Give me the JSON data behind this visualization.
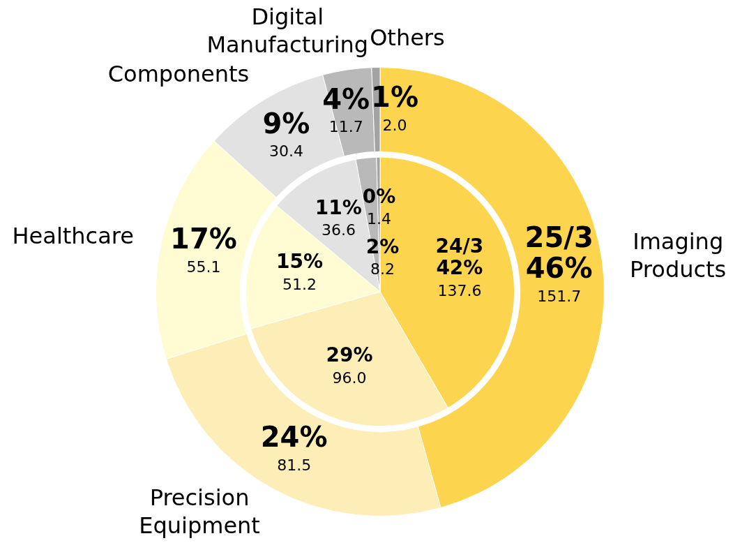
{
  "chart_data": {
    "type": "donut",
    "categories": [
      "Imaging Products",
      "Precision Equipment",
      "Healthcare",
      "Components",
      "Digital Manufacturing",
      "Others"
    ],
    "colors": [
      "#fdd44e",
      "#fdeeb8",
      "#fffcd4",
      "#e2e2e2",
      "#b9b9b9",
      "#a3a3a3"
    ],
    "series": [
      {
        "name": "25/3",
        "values": [
          151.7,
          81.5,
          55.1,
          30.4,
          11.7,
          2.0
        ],
        "value_labels": [
          "46%\n151.7",
          "24%\n81.5",
          "17%\n55.1",
          "9%\n30.4",
          "4%\n11.7",
          "1%\n2.0"
        ]
      },
      {
        "name": "24/3",
        "values": [
          137.6,
          96.0,
          51.2,
          36.6,
          8.2,
          1.4
        ],
        "value_labels": [
          "42%\n137.6",
          "29%\n96.0",
          "15%\n51.2",
          "11%\n36.6",
          "2%\n8.2",
          "0%\n1.4"
        ]
      }
    ],
    "legend": false
  }
}
